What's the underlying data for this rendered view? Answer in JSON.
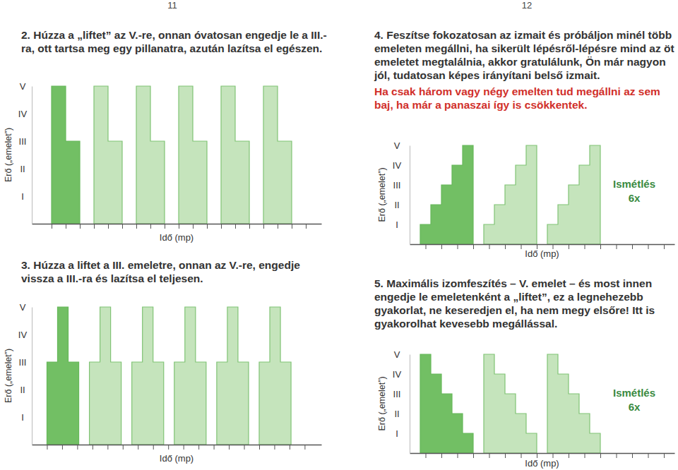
{
  "page_numbers": [
    11,
    12
  ],
  "chart_data": [
    {
      "type": "step",
      "title": "2. Húzza a „liftet” az V.-re, onnan óvatosan engedje le a III.-ra, ott tartsa meg egy pillanatra, azután lazítsa el egészen.",
      "x_label": "Idő (mp)",
      "y_label": "Erő („emelet”)",
      "xlim": [
        -0.4,
        20.1
      ],
      "xticks": [
        1,
        2,
        3,
        4,
        5,
        6,
        7,
        8,
        9,
        10,
        11,
        12,
        13,
        14,
        15,
        16,
        17,
        18,
        19
      ],
      "ylim": [
        0,
        5
      ],
      "yticks": [
        {
          "value": 1,
          "label": "I"
        },
        {
          "value": 2,
          "label": "II"
        },
        {
          "value": 3,
          "label": "III"
        },
        {
          "value": 4,
          "label": "IV"
        },
        {
          "value": 5,
          "label": "V"
        }
      ],
      "tick_labels": "y",
      "series": [
        {
          "color": "#72bf64",
          "x": [
            1,
            2,
            3
          ],
          "values": [
            5,
            3,
            0
          ]
        },
        {
          "color": "#c5e4bc",
          "x": [
            4,
            5,
            6
          ],
          "values": [
            5,
            3,
            0
          ]
        },
        {
          "color": "#c5e4bc",
          "x": [
            7,
            8,
            9
          ],
          "values": [
            5,
            3,
            0
          ]
        },
        {
          "color": "#c5e4bc",
          "x": [
            10,
            11,
            12
          ],
          "values": [
            5,
            3,
            0
          ]
        },
        {
          "color": "#c5e4bc",
          "x": [
            13,
            14,
            15
          ],
          "values": [
            5,
            3,
            0
          ]
        },
        {
          "color": "#c5e4bc",
          "x": [
            16,
            17,
            18
          ],
          "values": [
            5,
            3,
            0
          ]
        }
      ]
    },
    {
      "type": "step",
      "title": "3. Húzza a liftet a III. emeletre, onnan az V.-re, engedje vissza a III.-ra és lazítsa el teljesen.",
      "x_label": "Idő (mp)",
      "y_label": "Erő („emelet”)",
      "xlim": [
        0,
        19.1
      ],
      "xticks": [
        1,
        2,
        3,
        4,
        5,
        6,
        7,
        8,
        9,
        10,
        11,
        12,
        13,
        14,
        15,
        16,
        17,
        18
      ],
      "ylim": [
        0,
        5
      ],
      "yticks": [
        {
          "value": 1,
          "label": "I"
        },
        {
          "value": 2,
          "label": "II"
        },
        {
          "value": 3,
          "label": "III"
        },
        {
          "value": 4,
          "label": "IV"
        },
        {
          "value": 5,
          "label": "V"
        }
      ],
      "tick_labels": "y",
      "series": [
        {
          "color": "#72bf64",
          "x": [
            1,
            1.7,
            2.4,
            3.1
          ],
          "values": [
            3,
            5,
            3,
            0
          ]
        },
        {
          "color": "#c5e4bc",
          "x": [
            3.8,
            4.5,
            5.2,
            5.9
          ],
          "values": [
            3,
            5,
            3,
            0
          ]
        },
        {
          "color": "#c5e4bc",
          "x": [
            6.6,
            7.3,
            8,
            8.7
          ],
          "values": [
            3,
            5,
            3,
            0
          ]
        },
        {
          "color": "#c5e4bc",
          "x": [
            9.4,
            10.1,
            10.8,
            11.5
          ],
          "values": [
            3,
            5,
            3,
            0
          ]
        },
        {
          "color": "#c5e4bc",
          "x": [
            12.2,
            12.9,
            13.6,
            14.3
          ],
          "values": [
            3,
            5,
            3,
            0
          ]
        },
        {
          "color": "#c5e4bc",
          "x": [
            15,
            15.7,
            16.4,
            17.1
          ],
          "values": [
            3,
            5,
            3,
            0
          ]
        }
      ]
    },
    {
      "type": "step",
      "title": "4. Feszítse fokozatosan az izmait és próbáljon minél több emeleten megállni, ha sikerült lépésről-lépésre mind az öt emeletet megtalálnia, akkor gratulálunk, Ön már nagyon jól, tudatosan képes irányítani belső izmait.",
      "subtitle": "Ha csak három vagy négy emelten tud megállni az sem baj, ha már a panaszai így is csökkentek.",
      "annotation": "Ismétlés 6x",
      "x_label": "Idő (mp)",
      "y_label": "Erő („emelet”)",
      "xlim": [
        0,
        25
      ],
      "xticks": [
        1.5,
        3,
        4.5,
        6,
        7.5,
        9,
        10.5,
        12,
        13.5,
        15,
        16.5,
        18,
        19.5,
        21,
        22.5,
        24
      ],
      "ylim": [
        0,
        5
      ],
      "yticks": [
        {
          "value": 1,
          "label": "I"
        },
        {
          "value": 2,
          "label": "II"
        },
        {
          "value": 3,
          "label": "III"
        },
        {
          "value": 4,
          "label": "IV"
        },
        {
          "value": 5,
          "label": "V"
        }
      ],
      "tick_labels": "y",
      "series": [
        {
          "color": "#72bf64",
          "x": [
            1,
            2,
            3,
            4,
            5,
            6
          ],
          "values": [
            1,
            2,
            3,
            4,
            5,
            0
          ]
        },
        {
          "color": "#c5e4bc",
          "x": [
            7,
            8,
            9,
            10,
            11,
            12
          ],
          "values": [
            1,
            2,
            3,
            4,
            5,
            0
          ]
        },
        {
          "color": "#c5e4bc",
          "x": [
            13,
            14,
            15,
            16,
            17,
            18
          ],
          "values": [
            1,
            2,
            3,
            4,
            5,
            0
          ]
        }
      ]
    },
    {
      "type": "step",
      "title": "5. Maximális izomfeszítés – V. emelet – és most innen engedje le emeletenként a „liftet”, ez a legnehezebb gyakorlat, ne keseredjen el, ha nem megy elsőre! Itt is gyakorolhat kevesebb megállással.",
      "annotation": "Ismétlés 6x",
      "x_label": "Idő (mp)",
      "y_label": "Erő („emelet”)",
      "xlim": [
        0,
        25
      ],
      "xticks": [
        1.5,
        3,
        4.5,
        6,
        7.5,
        9,
        10.5,
        12,
        13.5,
        15,
        16.5,
        18,
        19.5,
        21,
        22.5,
        24
      ],
      "ylim": [
        0,
        5
      ],
      "yticks": [
        {
          "value": 1,
          "label": "I"
        },
        {
          "value": 2,
          "label": "II"
        },
        {
          "value": 3,
          "label": "III"
        },
        {
          "value": 4,
          "label": "IV"
        },
        {
          "value": 5,
          "label": "V"
        }
      ],
      "tick_labels": "y",
      "series": [
        {
          "color": "#72bf64",
          "x": [
            1,
            2,
            3,
            4,
            5,
            6
          ],
          "values": [
            5,
            4,
            3,
            2,
            1,
            0
          ]
        },
        {
          "color": "#c5e4bc",
          "x": [
            7,
            8,
            9,
            10,
            11,
            12
          ],
          "values": [
            5,
            4,
            3,
            2,
            1,
            0
          ]
        },
        {
          "color": "#c5e4bc",
          "x": [
            13,
            14,
            15,
            16,
            17,
            18
          ],
          "values": [
            5,
            4,
            3,
            2,
            1,
            0
          ]
        }
      ]
    }
  ]
}
